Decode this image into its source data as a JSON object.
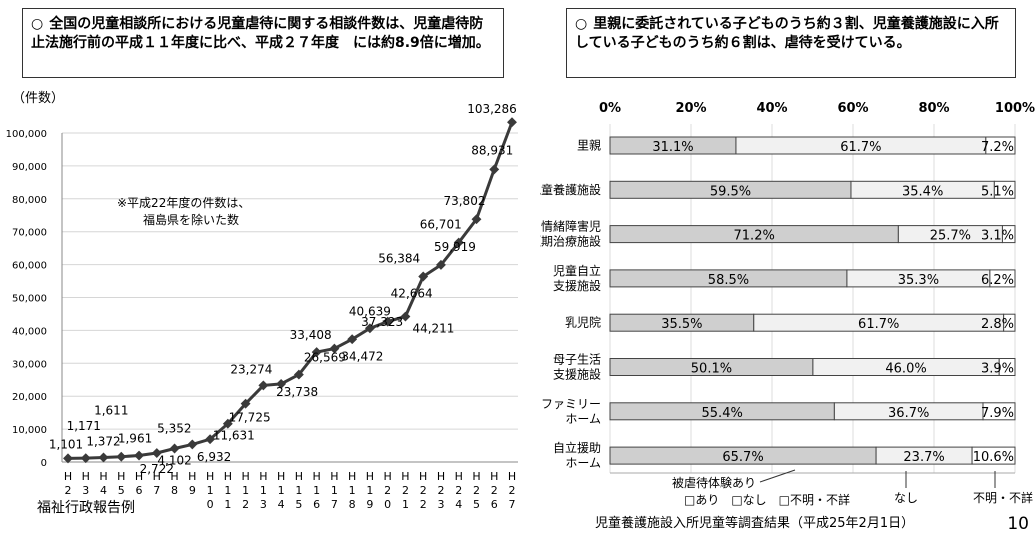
{
  "left_panel": {
    "bullet": "○",
    "text": "全国の児童相談所における児童虐待に関する相談件数は、児童虐待防止法施行前の平成１１年度に比べ、平成２７年度　には約8.9倍に増加。"
  },
  "right_panel": {
    "bullet": "○",
    "text": "里親に委託されている子どものうち約３割、児童養護施設に入所している子どものうち約６割は、虐待を受けている。"
  },
  "page_number": "10",
  "chart_data": [
    {
      "type": "line",
      "ylabel": "（件数）",
      "ylim": [
        0,
        100000
      ],
      "yticks": [
        0,
        10000,
        20000,
        30000,
        40000,
        50000,
        60000,
        70000,
        80000,
        90000,
        100000
      ],
      "ytick_labels": [
        "0",
        "10,000",
        "20,000",
        "30,000",
        "40,000",
        "50,000",
        "60,000",
        "70,000",
        "80,000",
        "90,000",
        "100,000"
      ],
      "x_labels": [
        [
          "H",
          "2"
        ],
        [
          "H",
          "3"
        ],
        [
          "H",
          "4"
        ],
        [
          "H",
          "5"
        ],
        [
          "H",
          "6"
        ],
        [
          "H",
          "7"
        ],
        [
          "H",
          "8"
        ],
        [
          "H",
          "9"
        ],
        [
          "H",
          "1",
          "0"
        ],
        [
          "H",
          "1",
          "1"
        ],
        [
          "H",
          "1",
          "2"
        ],
        [
          "H",
          "1",
          "3"
        ],
        [
          "H",
          "1",
          "4"
        ],
        [
          "H",
          "1",
          "5"
        ],
        [
          "H",
          "1",
          "6"
        ],
        [
          "H",
          "1",
          "7"
        ],
        [
          "H",
          "1",
          "8"
        ],
        [
          "H",
          "1",
          "9"
        ],
        [
          "H",
          "2",
          "0"
        ],
        [
          "H",
          "2",
          "1"
        ],
        [
          "H",
          "2",
          "2"
        ],
        [
          "H",
          "2",
          "3"
        ],
        [
          "H",
          "2",
          "4"
        ],
        [
          "H",
          "2",
          "5"
        ],
        [
          "H",
          "2",
          "6"
        ],
        [
          "H",
          "2",
          "7"
        ]
      ],
      "values": [
        1101,
        1171,
        1372,
        1611,
        1961,
        2722,
        4102,
        5352,
        6932,
        11631,
        17725,
        23274,
        23738,
        26569,
        33408,
        34472,
        37323,
        40639,
        42664,
        44211,
        56384,
        59919,
        66701,
        73802,
        88931,
        103286
      ],
      "data_labels": [
        "1,101",
        "1,171",
        "1,372",
        "1,611",
        "1,961",
        "2,722",
        "4,102",
        "5,352",
        "6,932",
        "11,631",
        "17,725",
        "23,274",
        "23,738",
        "26,569",
        "33,408",
        "34,472",
        "37,323",
        "40,639",
        "42,664",
        "44,211",
        "56,384",
        "59,919",
        "66,701",
        "73,802",
        "88,931",
        "103,286"
      ],
      "annotation": "※平成22年度の件数は、\n福島県を除いた数",
      "source": "福祉行政報告例",
      "line_color": "#3a3a3a"
    },
    {
      "type": "bar",
      "orientation": "horizontal",
      "stacked": true,
      "xlim": [
        0,
        100
      ],
      "xtick_labels": [
        "0%",
        "20%",
        "40%",
        "60%",
        "80%",
        "100%"
      ],
      "categories": [
        "里親",
        "児童養護施設",
        "情緒障害児\n短期治療施設",
        "児童自立\n支援施設",
        "乳児院",
        "母子生活\n支援施設",
        "ファミリー\nホーム",
        "自立援助\nホーム"
      ],
      "series": [
        {
          "name": "あり",
          "values": [
            31.1,
            59.5,
            71.2,
            58.5,
            35.5,
            50.1,
            55.4,
            65.7
          ],
          "labels": [
            "31.1%",
            "59.5%",
            "71.2%",
            "58.5%",
            "35.5%",
            "50.1%",
            "55.4%",
            "65.7%"
          ],
          "color": "#cfcfcf"
        },
        {
          "name": "なし",
          "values": [
            61.7,
            35.4,
            25.7,
            35.3,
            61.7,
            46.0,
            36.7,
            23.7
          ],
          "labels": [
            "61.7%",
            "35.4%",
            "25.7%",
            "35.3%",
            "61.7%",
            "46.0%",
            "36.7%",
            "23.7%"
          ],
          "color": "#f1f1f1"
        },
        {
          "name": "不明・不詳",
          "values": [
            7.2,
            5.1,
            3.1,
            6.2,
            2.8,
            3.9,
            7.9,
            10.6
          ],
          "labels": [
            "7.2%",
            "5.1%",
            "3.1%",
            "6.2%",
            "2.8%",
            "3.9%",
            "7.9%",
            "10.6%"
          ],
          "color": "#ffffff"
        }
      ],
      "legend_text": "□あり　□なし　□不明・不詳",
      "callouts": [
        "被虐待体験あり",
        "なし",
        "不明・不詳"
      ],
      "source": "児童養護施設入所児童等調査結果（平成25年2月1日）"
    }
  ]
}
